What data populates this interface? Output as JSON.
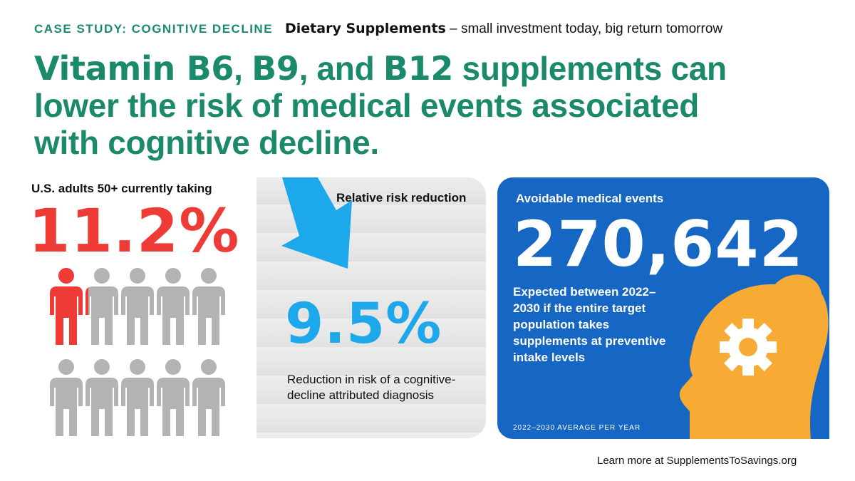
{
  "header": {
    "kicker": "CASE STUDY: COGNITIVE DECLINE",
    "topic_bold": "Dietary Supplements",
    "topic_rest": " – small investment today, big return tomorrow"
  },
  "headline": {
    "part1": "Vitamin B6",
    "part2": ", ",
    "part3": "B9",
    "part4": ", and ",
    "part5": "B12",
    "part6": " supplements can lower the risk of medical events associated with cognitive decline."
  },
  "adults": {
    "label": "U.S. adults 50+ currently taking",
    "value": "11.2%",
    "share": 0.112
  },
  "risk": {
    "title": "Relative risk reduction",
    "value": "9.5%",
    "description": "Reduction in risk of a cognitive-decline attributed diagnosis"
  },
  "avoidable": {
    "title": "Avoidable medical events",
    "value": "270,642",
    "description": "Expected between 2022–2030 if the entire target population takes supplements at preventive intake levels",
    "footnote": "2022–2030 AVERAGE PER YEAR"
  },
  "footer": {
    "text": "Learn more at SupplementsToSavings.org"
  },
  "colors": {
    "green": "#1b8a6b",
    "red": "#ef3b36",
    "gray_person": "#b3b3b3",
    "light_blue": "#1ea8ec",
    "blue_panel": "#1666c3",
    "orange_head": "#f7ab35"
  },
  "icons": [
    "person-icon",
    "down-arrow-icon",
    "head-gear-icon"
  ]
}
